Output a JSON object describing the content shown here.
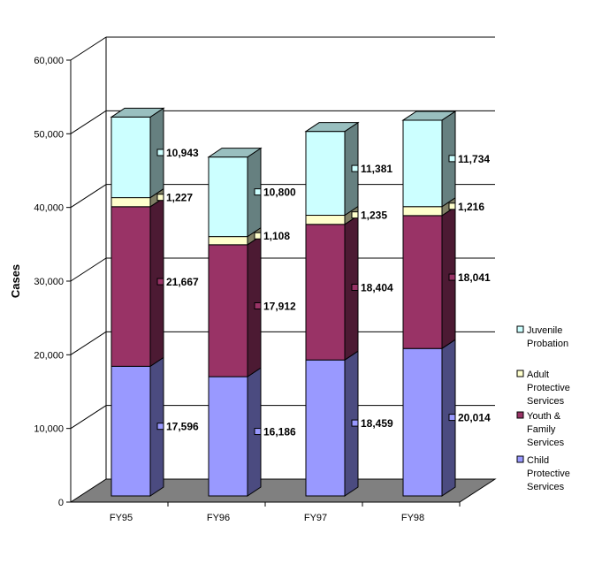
{
  "chart_data": {
    "type": "bar",
    "stacked": true,
    "three_d": true,
    "title": "",
    "xlabel": "",
    "ylabel": "Cases",
    "ylim": [
      0,
      60000
    ],
    "yticks": [
      "0",
      "10,000",
      "20,000",
      "30,000",
      "40,000",
      "50,000",
      "60,000"
    ],
    "grid": true,
    "legend_position": "right",
    "categories": [
      "FY95",
      "FY96",
      "FY97",
      "FY98"
    ],
    "series": [
      {
        "name": "Child Protective Services",
        "values": [
          17596,
          16186,
          18459,
          20014
        ],
        "labels": [
          "17,596",
          "16,186",
          "18,459",
          "20,014"
        ],
        "color": "#9999FF",
        "side": "#4B4B80"
      },
      {
        "name": "Youth & Family Services",
        "values": [
          21667,
          17912,
          18404,
          18041
        ],
        "labels": [
          "21,667",
          "17,912",
          "18,404",
          "18,041"
        ],
        "color": "#993366",
        "side": "#4C1A33"
      },
      {
        "name": "Adult Protective Services",
        "values": [
          1227,
          1108,
          1235,
          1216
        ],
        "labels": [
          "1,227",
          "1,108",
          "1,235",
          "1,216"
        ],
        "color": "#FFFFCC",
        "side": "#808066"
      },
      {
        "name": "Juvenile Probation",
        "values": [
          10943,
          10800,
          11381,
          11734
        ],
        "labels": [
          "10,943",
          "10,800",
          "11,381",
          "11,734"
        ],
        "color": "#CCFFFF",
        "side": "#668080",
        "top": "#99BFBF"
      }
    ],
    "legend": [
      {
        "lines": [
          "Juvenile",
          "Probation"
        ],
        "color": "#CCFFFF"
      },
      {
        "lines": [
          "Adult",
          "Protective",
          "Services"
        ],
        "color": "#FFFFCC"
      },
      {
        "lines": [
          "Youth &",
          "Family",
          "Services"
        ],
        "color": "#993366"
      },
      {
        "lines": [
          "Child",
          "Protective",
          "Services"
        ],
        "color": "#9999FF"
      }
    ]
  }
}
